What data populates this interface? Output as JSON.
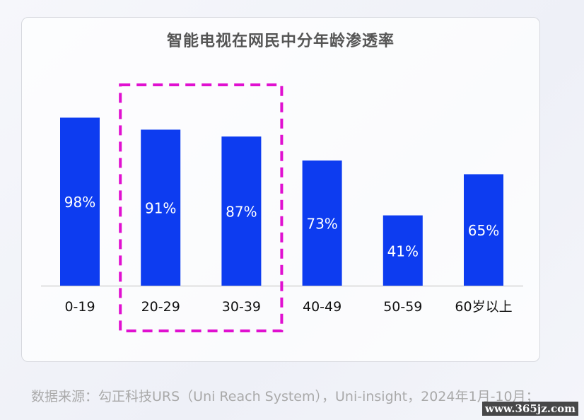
{
  "chart_data": {
    "type": "bar",
    "title": "智能电视在网民中分年龄渗透率",
    "categories": [
      "0-19",
      "20-29",
      "30-39",
      "40-49",
      "50-59",
      "60岁以上"
    ],
    "values": [
      98,
      91,
      87,
      73,
      41,
      65
    ],
    "value_labels": [
      "98%",
      "91%",
      "87%",
      "73%",
      "41%",
      "65%"
    ],
    "unit": "%",
    "ylim": [
      0,
      100
    ],
    "grid": false,
    "legend": "none",
    "highlight": [
      "20-29",
      "30-39"
    ],
    "colors": {
      "bar": "#0d3cf0",
      "label": "#ffffff",
      "highlight_box": "#e010d0",
      "axis": "#cccccc"
    }
  },
  "footer": {
    "source": "数据来源：勾正科技URS（Uni Reach System），Uni-insight，2024年1月-10月；",
    "watermark": "www.365jz.com"
  }
}
